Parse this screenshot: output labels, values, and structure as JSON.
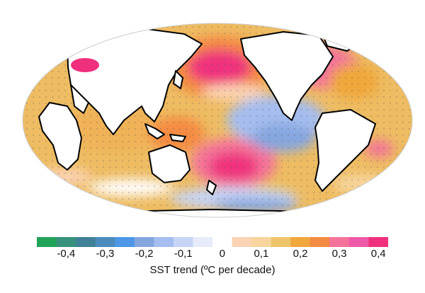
{
  "colorbar": {
    "title": "SST trend (ºC per decade)",
    "tick_labels": [
      "-0,4",
      "-0,3",
      "-0,2",
      "-0,1",
      "0",
      "0,1",
      "0,2",
      "0,3",
      "0,4"
    ],
    "bins": [
      {
        "color": "#21a35a"
      },
      {
        "color": "#37917c"
      },
      {
        "color": "#3f8196"
      },
      {
        "color": "#4c8bbd"
      },
      {
        "color": "#4d97e6"
      },
      {
        "color": "#85a6df"
      },
      {
        "color": "#a5bdef"
      },
      {
        "color": "#c6d4f6"
      },
      {
        "color": "#e7ecfb"
      },
      {
        "color": "#ffffff"
      },
      {
        "color": "#fbd3b4"
      },
      {
        "color": "#f8d59e"
      },
      {
        "color": "#eec46a"
      },
      {
        "color": "#f0a73b"
      },
      {
        "color": "#f58b42"
      },
      {
        "color": "#f4739a"
      },
      {
        "color": "#ef5aa8"
      },
      {
        "color": "#f0307d"
      }
    ]
  },
  "map": {
    "ocean_color": "#eebc62",
    "land_color": "#ffffff",
    "coast_color": "#000000"
  }
}
